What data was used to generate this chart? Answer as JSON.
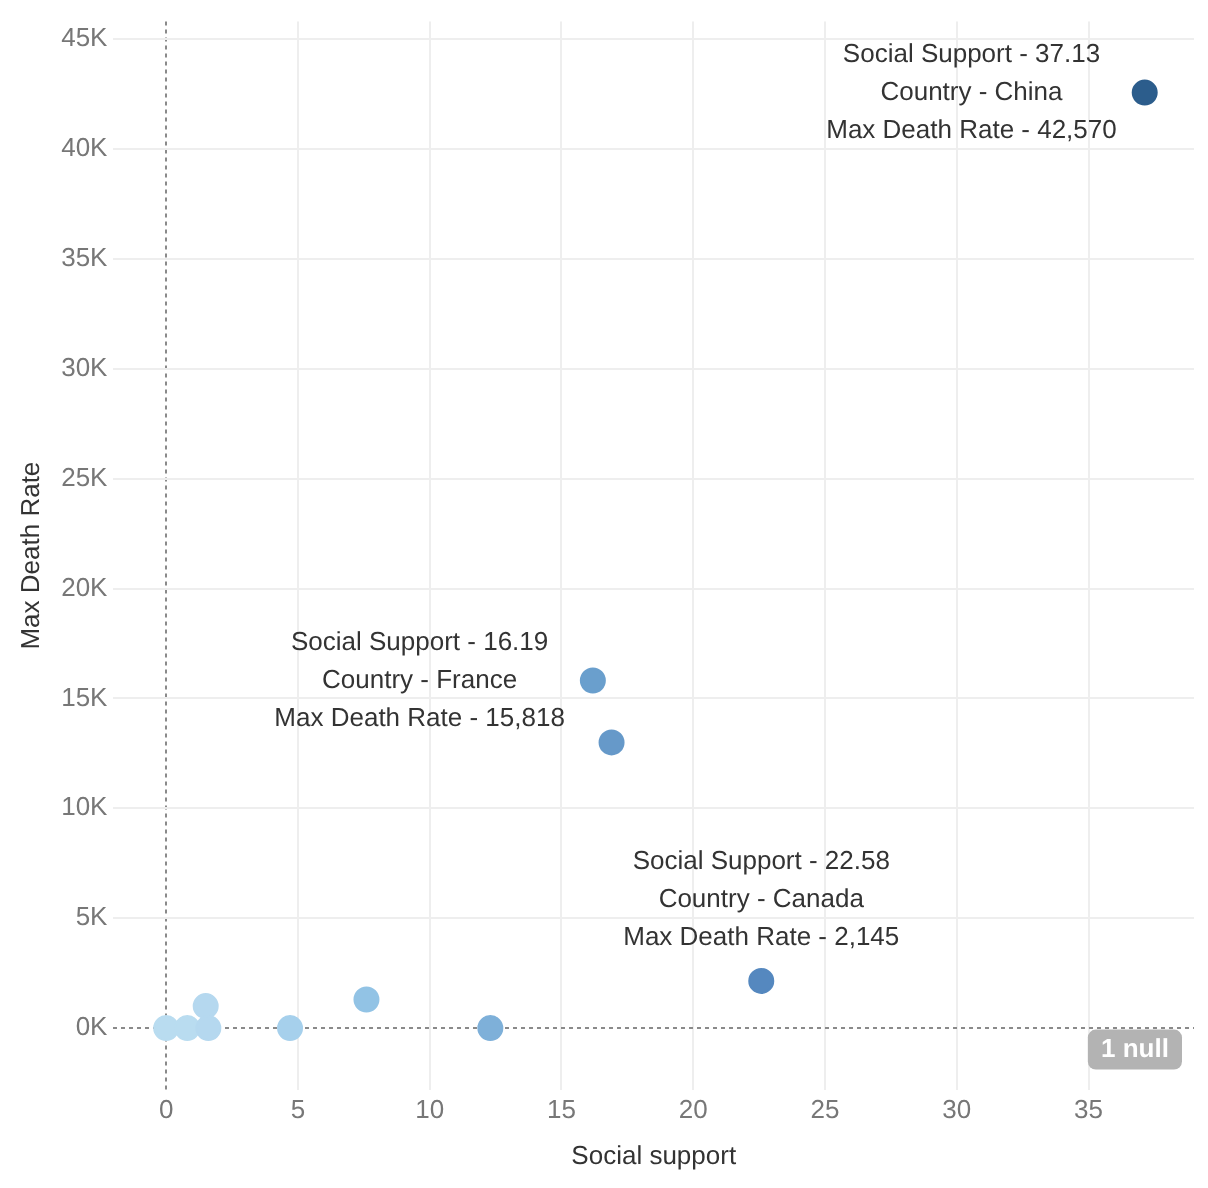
{
  "chart_data": {
    "type": "scatter",
    "xlabel": "Social support",
    "ylabel": "Max Death Rate",
    "x": [
      0,
      0.8,
      1.5,
      1.6,
      4.7,
      7.6,
      12.3,
      16.19,
      16.9,
      22.58,
      37.13
    ],
    "values": [
      0,
      0,
      1000,
      0,
      0,
      1300,
      0,
      15818,
      13000,
      2145,
      42570
    ],
    "colors": [
      "#b9dcf0",
      "#b9dcf0",
      "#b5d8ef",
      "#b5d8ef",
      "#a6d0ec",
      "#92c3e5",
      "#7eb0d9",
      "#6a9fcd",
      "#6699c9",
      "#5588bf",
      "#2c5d8c"
    ],
    "xlim": [
      -2,
      39
    ],
    "xticks": [
      0,
      5,
      10,
      15,
      20,
      25,
      30,
      35
    ],
    "ylim": [
      -2800,
      45800
    ],
    "yticks": [
      {
        "value": 0,
        "label": "0K"
      },
      {
        "value": 5000,
        "label": "5K"
      },
      {
        "value": 10000,
        "label": "10K"
      },
      {
        "value": 15000,
        "label": "15K"
      },
      {
        "value": 20000,
        "label": "20K"
      },
      {
        "value": 25000,
        "label": "25K"
      },
      {
        "value": 30000,
        "label": "30K"
      },
      {
        "value": 35000,
        "label": "35K"
      },
      {
        "value": 40000,
        "label": "40K"
      },
      {
        "value": 45000,
        "label": "45K"
      }
    ],
    "grid": true,
    "legend": false,
    "marker": "circle",
    "annotations": [
      {
        "text": "Social Support - 37.13\nCountry - China\nMax Death Rate - 42,570",
        "x": 37.13,
        "y": 42570
      },
      {
        "text": "Social Support - 16.19\nCountry - France\nMax Death Rate - 15,818",
        "x": 16.19,
        "y": 15818
      },
      {
        "text": "Social Support - 22.58\nCountry - Canada\nMax Death Rate - 2,145",
        "x": 22.58,
        "y": 2145
      },
      "1 null"
    ]
  }
}
